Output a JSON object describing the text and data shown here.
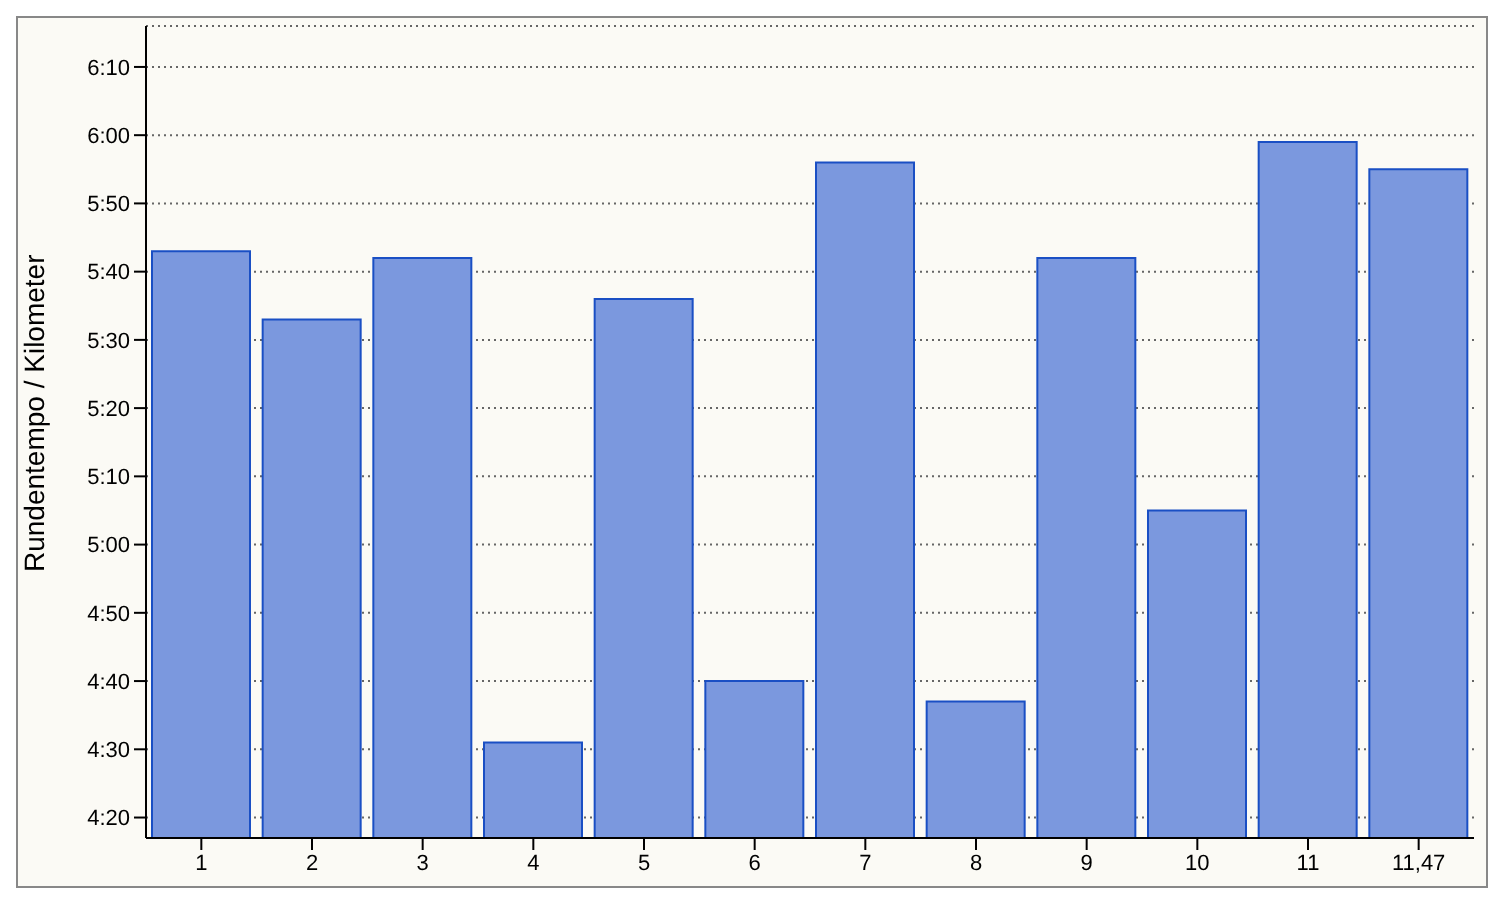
{
  "chart_data": {
    "type": "bar",
    "ylabel": "Rundentempo / Kilometer",
    "categories": [
      "1",
      "2",
      "3",
      "4",
      "5",
      "6",
      "7",
      "8",
      "9",
      "10",
      "11",
      "11,47"
    ],
    "values": [
      343,
      333,
      342,
      271,
      336,
      280,
      356,
      277,
      342,
      305,
      359,
      355
    ],
    "color": "#7b98de",
    "ylim": [
      257,
      376
    ],
    "yticks": [
      {
        "value": 260,
        "label": "4:20"
      },
      {
        "value": 270,
        "label": "4:30"
      },
      {
        "value": 280,
        "label": "4:40"
      },
      {
        "value": 290,
        "label": "4:50"
      },
      {
        "value": 300,
        "label": "5:00"
      },
      {
        "value": 310,
        "label": "5:10"
      },
      {
        "value": 320,
        "label": "5:20"
      },
      {
        "value": 330,
        "label": "5:30"
      },
      {
        "value": 340,
        "label": "5:40"
      },
      {
        "value": 350,
        "label": "5:50"
      },
      {
        "value": 360,
        "label": "6:00"
      },
      {
        "value": 370,
        "label": "6:10"
      }
    ],
    "grid": "y",
    "legend": false
  }
}
